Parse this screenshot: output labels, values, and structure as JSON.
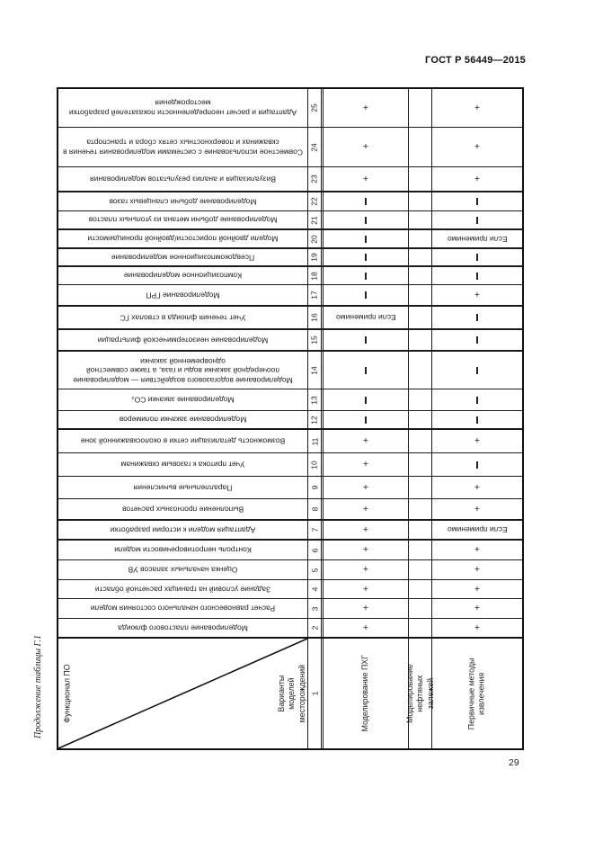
{
  "page": {
    "header": "ГОСТ Р 56449—2015",
    "caption": "Продолжение таблицы Г.1",
    "page_number": "29"
  },
  "table": {
    "corner_top": "Функционал ПО",
    "corner_bottom": "Варианты моделей месторождений",
    "col1_number": "1",
    "conditional_label": "Если применимо",
    "variant_headers": [
      "Моделирование ПХГ",
      "Моделирование нефтяных залежей",
      "Первичные методы извлечения"
    ],
    "rows": [
      {
        "num": "25",
        "desc": "Адаптация и расчет неопределенности показателей разработки месторождения",
        "pkhg": "+",
        "oil": "",
        "primary": "+"
      },
      {
        "num": "24",
        "desc": "Совместное использование с системами моделирования течения в скважинах и поверхностных сетях сбора и транспорта",
        "pkhg": "+",
        "oil": "",
        "primary": "+"
      },
      {
        "num": "23",
        "desc": "Визуализация и анализ результатов моделирования",
        "pkhg": "+",
        "oil": "",
        "primary": "+"
      },
      {
        "num": "22",
        "desc": "Моделирование добычи сланцевых газов",
        "pkhg": "-",
        "oil": "",
        "primary": "-"
      },
      {
        "num": "21",
        "desc": "Моделирование добычи метана из угольных пластов",
        "pkhg": "-",
        "oil": "",
        "primary": "-"
      },
      {
        "num": "20",
        "desc": "Модели двойной пористости/двойной проницаемости",
        "pkhg": "-",
        "oil": "",
        "primary": "Если применимо"
      },
      {
        "num": "19",
        "desc": "Псевдокомпозиционное моделирование",
        "pkhg": "-",
        "oil": "",
        "primary": "-"
      },
      {
        "num": "18",
        "desc": "Композиционное моделирование",
        "pkhg": "-",
        "oil": "",
        "primary": "-"
      },
      {
        "num": "17",
        "desc": "Моделирование ГРП",
        "pkhg": "-",
        "oil": "",
        "primary": "+"
      },
      {
        "num": "16",
        "desc": "Учет течения флюида в стволах ГС",
        "pkhg": "Если применимо",
        "oil": "",
        "primary": "-"
      },
      {
        "num": "15",
        "desc": "Моделирование неизотермической фильтрации",
        "pkhg": "-",
        "oil": "",
        "primary": "-"
      },
      {
        "num": "14",
        "desc": "Моделирование водогазового воздействия — моделирование поочередной закачки воды и газа, а также совместной одновременной закачки",
        "pkhg": "-",
        "oil": "",
        "primary": "-"
      },
      {
        "num": "13",
        "desc": "Моделирование закачки CO₂",
        "pkhg": "-",
        "oil": "",
        "primary": "-"
      },
      {
        "num": "12",
        "desc": "Моделирование закачки полимеров",
        "pkhg": "-",
        "oil": "",
        "primary": "-"
      },
      {
        "num": "11",
        "desc": "Возможность детализации сетки в околоскважинной зоне",
        "pkhg": "+",
        "oil": "",
        "primary": "+"
      },
      {
        "num": "10",
        "desc": "Учет притока к газовым скважинам",
        "pkhg": "+",
        "oil": "",
        "primary": "-"
      },
      {
        "num": "9",
        "desc": "Параллельные вычисления",
        "pkhg": "+",
        "oil": "",
        "primary": "+"
      },
      {
        "num": "8",
        "desc": "Выполнение прогнозных расчетов",
        "pkhg": "+",
        "oil": "",
        "primary": "+"
      },
      {
        "num": "7",
        "desc": "Адаптация модели к истории разработки",
        "pkhg": "+",
        "oil": "",
        "primary": "Если применимо"
      },
      {
        "num": "6",
        "desc": "Контроль непротиворечивости модели",
        "pkhg": "+",
        "oil": "",
        "primary": "+"
      },
      {
        "num": "5",
        "desc": "Оценка начальных запасов УВ",
        "pkhg": "+",
        "oil": "",
        "primary": "+"
      },
      {
        "num": "4",
        "desc": "Задание условий на границах расчетной области",
        "pkhg": "+",
        "oil": "",
        "primary": "+"
      },
      {
        "num": "3",
        "desc": "Расчет равновесного начального состояния модели",
        "pkhg": "+",
        "oil": "",
        "primary": "+"
      },
      {
        "num": "2",
        "desc": "Моделирование пластового флюида",
        "pkhg": "+",
        "oil": "",
        "primary": "+"
      }
    ]
  }
}
